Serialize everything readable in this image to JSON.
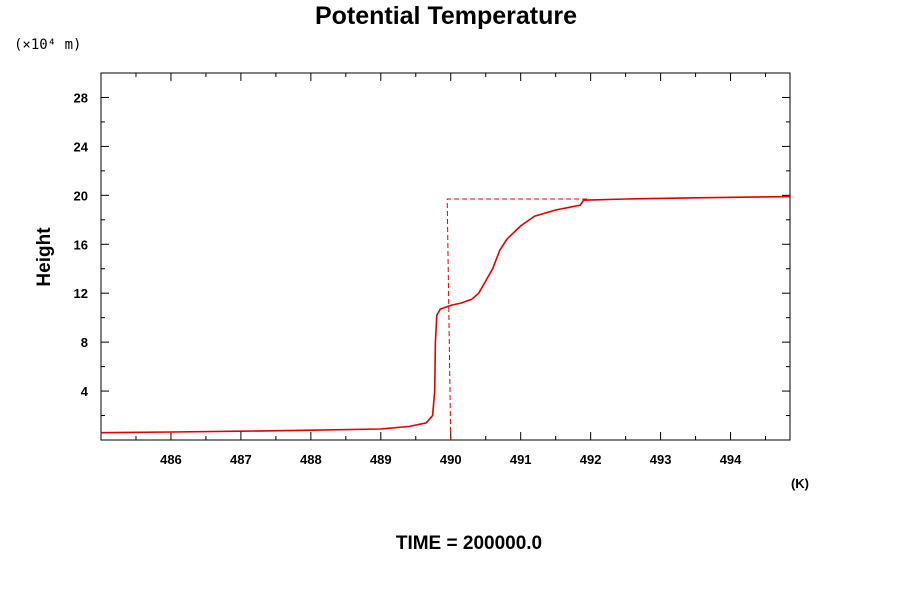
{
  "chart_data": {
    "type": "line",
    "title": "Potential Temperature",
    "ylabel": "Height",
    "yunit": "(×10⁴ m)",
    "xunit": "(K)",
    "footer": "TIME = 200000.0",
    "xlim": [
      485.0,
      494.85
    ],
    "ylim": [
      0,
      30.0
    ],
    "xticks": [
      486,
      487,
      488,
      489,
      490,
      491,
      492,
      493,
      494
    ],
    "yticks": [
      4,
      8,
      12,
      16,
      20,
      24,
      28
    ],
    "grid": false,
    "colors": {
      "series": "#e00000",
      "axis": "#000000"
    },
    "series": [
      {
        "style": "solid",
        "points": [
          [
            485.0,
            0.6
          ],
          [
            486.0,
            0.65
          ],
          [
            487.0,
            0.72
          ],
          [
            488.0,
            0.8
          ],
          [
            489.0,
            0.9
          ],
          [
            489.4,
            1.1
          ],
          [
            489.65,
            1.4
          ],
          [
            489.74,
            2.0
          ],
          [
            489.77,
            4.0
          ],
          [
            489.78,
            8.0
          ],
          [
            489.8,
            10.2
          ],
          [
            489.85,
            10.7
          ],
          [
            490.0,
            11.0
          ],
          [
            490.15,
            11.2
          ],
          [
            490.3,
            11.5
          ],
          [
            490.4,
            12.0
          ],
          [
            490.5,
            13.0
          ],
          [
            490.6,
            14.0
          ],
          [
            490.7,
            15.5
          ],
          [
            490.8,
            16.4
          ],
          [
            491.0,
            17.5
          ],
          [
            491.2,
            18.3
          ],
          [
            491.5,
            18.8
          ],
          [
            491.85,
            19.2
          ],
          [
            491.9,
            19.6
          ],
          [
            492.5,
            19.7
          ],
          [
            493.5,
            19.8
          ],
          [
            494.85,
            19.9
          ]
        ]
      },
      {
        "style": "dashed",
        "points": [
          [
            490.0,
            0.0
          ],
          [
            489.95,
            19.7
          ],
          [
            492.0,
            19.7
          ]
        ]
      }
    ]
  }
}
